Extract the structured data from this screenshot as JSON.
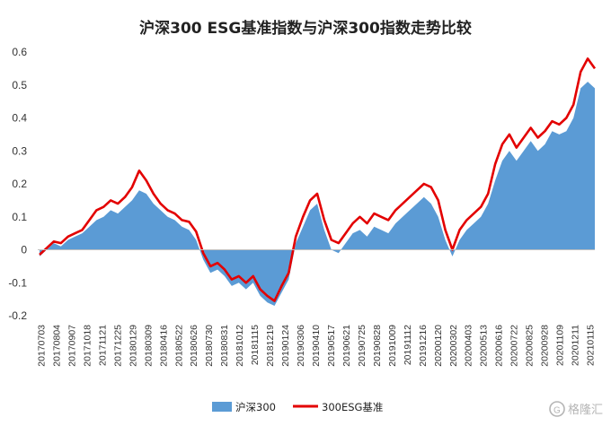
{
  "chart_data": {
    "type": "area",
    "title": "沪深300 ESG基准指数与沪深300指数走势比较",
    "xlabel": "",
    "ylabel": "",
    "ylim": [
      -0.2,
      0.6
    ],
    "yticks": [
      "-0.2",
      "-0.1",
      "0",
      "0.1",
      "0.2",
      "0.3",
      "0.4",
      "0.5",
      "0.6"
    ],
    "x_tick_labels": [
      "20170703",
      "20170804",
      "20170907",
      "20171018",
      "20171121",
      "20171225",
      "20180129",
      "20180309",
      "20180416",
      "20180522",
      "20180626",
      "20180730",
      "20180831",
      "20181012",
      "20181115",
      "20181219",
      "20190124",
      "20190306",
      "20190410",
      "20190517",
      "20190621",
      "20190725",
      "20190828",
      "20191009",
      "20191112",
      "20191216",
      "20200120",
      "20200302",
      "20200403",
      "20200513",
      "20200616",
      "20200722",
      "20200825",
      "20200928",
      "20201109",
      "20201211",
      "20210115"
    ],
    "x_range": [
      "20170703",
      "20210115"
    ],
    "legend_position": "bottom-center",
    "grid": false,
    "series": [
      {
        "name": "沪深300",
        "kind": "area",
        "color": "#5b9bd5",
        "values": [
          -0.02,
          0.0,
          0.02,
          0.01,
          0.03,
          0.04,
          0.05,
          0.07,
          0.09,
          0.1,
          0.12,
          0.11,
          0.13,
          0.15,
          0.18,
          0.17,
          0.14,
          0.12,
          0.1,
          0.09,
          0.07,
          0.06,
          0.03,
          -0.03,
          -0.07,
          -0.06,
          -0.08,
          -0.11,
          -0.1,
          -0.12,
          -0.1,
          -0.14,
          -0.16,
          -0.17,
          -0.13,
          -0.09,
          0.02,
          0.07,
          0.12,
          0.14,
          0.06,
          0.0,
          -0.01,
          0.02,
          0.05,
          0.06,
          0.04,
          0.07,
          0.06,
          0.05,
          0.08,
          0.1,
          0.12,
          0.14,
          0.16,
          0.14,
          0.1,
          0.03,
          -0.02,
          0.03,
          0.06,
          0.08,
          0.1,
          0.14,
          0.21,
          0.27,
          0.3,
          0.27,
          0.3,
          0.33,
          0.3,
          0.32,
          0.36,
          0.35,
          0.36,
          0.4,
          0.49,
          0.51,
          0.49
        ]
      },
      {
        "name": "300ESG基准",
        "kind": "line",
        "color": "#e30000",
        "values": [
          -0.015,
          0.005,
          0.025,
          0.02,
          0.04,
          0.05,
          0.06,
          0.09,
          0.12,
          0.13,
          0.15,
          0.14,
          0.16,
          0.19,
          0.24,
          0.21,
          0.17,
          0.14,
          0.12,
          0.11,
          0.09,
          0.085,
          0.055,
          -0.01,
          -0.05,
          -0.04,
          -0.06,
          -0.09,
          -0.08,
          -0.1,
          -0.08,
          -0.12,
          -0.14,
          -0.155,
          -0.11,
          -0.07,
          0.04,
          0.1,
          0.15,
          0.17,
          0.09,
          0.03,
          0.02,
          0.05,
          0.08,
          0.1,
          0.08,
          0.11,
          0.1,
          0.09,
          0.12,
          0.14,
          0.16,
          0.18,
          0.2,
          0.19,
          0.15,
          0.06,
          0.0,
          0.06,
          0.09,
          0.11,
          0.13,
          0.17,
          0.26,
          0.32,
          0.35,
          0.31,
          0.34,
          0.37,
          0.34,
          0.36,
          0.39,
          0.38,
          0.4,
          0.44,
          0.54,
          0.58,
          0.55
        ]
      }
    ]
  },
  "legend": {
    "items": [
      "沪深300",
      "300ESG基准"
    ]
  },
  "watermark": {
    "text": "格隆汇"
  }
}
